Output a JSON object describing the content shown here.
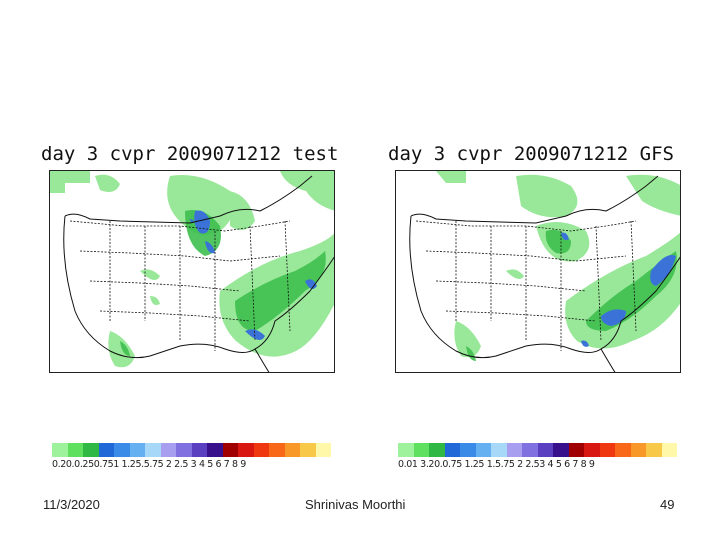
{
  "panels": [
    {
      "title": "day 3 cvpr 2009071212 test",
      "colorbar_labels": "0.20.0.250.751 1.25.5.75 2 2.5 3 4 5 6 7 8 9"
    },
    {
      "title": "day 3 cvpr 2009071212 GFS",
      "colorbar_labels": "0.01 3.20.0.75 1.25 1.5.75 2 2.53 4 5 6 7 8 9"
    }
  ],
  "colorbar_colors": [
    "#9ef29b",
    "#5fe05f",
    "#2fb844",
    "#2068d8",
    "#3a8ae8",
    "#64b0f0",
    "#a8d8f8",
    "#a89ef0",
    "#8070e0",
    "#5a40c0",
    "#38108c",
    "#a00000",
    "#d81810",
    "#f03810",
    "#f86818",
    "#f89828",
    "#f8c848",
    "#fff8a8"
  ],
  "footer": {
    "date": "11/3/2020",
    "author": "Shrinivas Moorthi",
    "page": "49"
  }
}
